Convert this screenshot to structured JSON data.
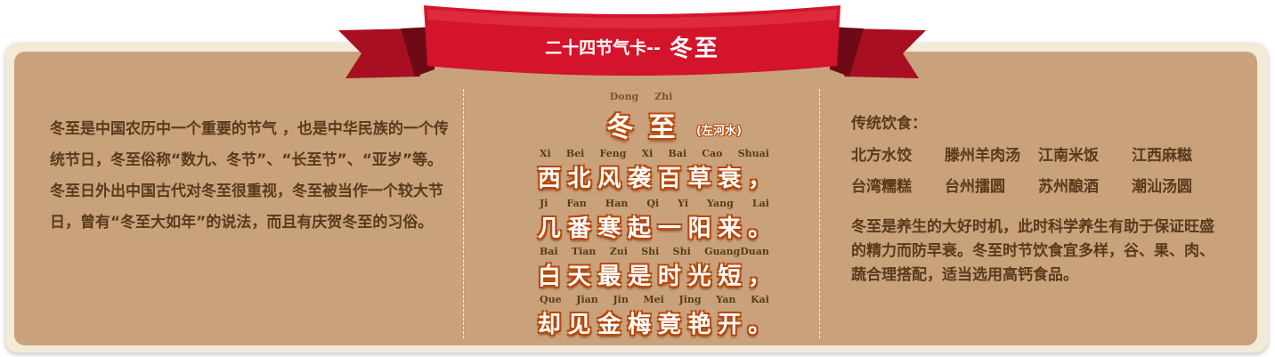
{
  "banner": {
    "prefix": "二十四节气卡--",
    "name": "冬至"
  },
  "intro": "冬至是中国农历中一个重要的节气 ，也是中华民族的一个传统节日，冬至俗称“数九、冬节”、“长至节”、“亚岁”等。冬至日外出中国古代对冬至很重视，冬至被当作一个较大节日，曾有“冬至大如年”的说法，而且有庆贺冬至的习俗。",
  "poem": {
    "title_pinyin": "Dong Zhi",
    "title_chars": [
      "冬",
      "至"
    ],
    "author": "(左河水)",
    "lines": [
      {
        "pinyin": [
          "Xi",
          "Bei",
          "Feng",
          "Xi",
          "Bai",
          "Cao",
          "Shuai"
        ],
        "chars": [
          "西",
          "北",
          "风",
          "袭",
          "百",
          "草",
          "衰",
          "，"
        ]
      },
      {
        "pinyin": [
          "Ji",
          "Fan",
          "Han",
          "Qi",
          "Yi",
          "Yang",
          "Lai"
        ],
        "chars": [
          "几",
          "番",
          "寒",
          "起",
          "一",
          "阳",
          "来",
          "。"
        ]
      },
      {
        "pinyin": [
          "Bai",
          "Tian",
          "Zui",
          "Shi",
          "Shi",
          "GuangDuan"
        ],
        "chars": [
          "白",
          "天",
          "最",
          "是",
          "时",
          "光",
          "短",
          "，"
        ]
      },
      {
        "pinyin": [
          "Que",
          "Jian",
          "Jin",
          "Mei",
          "Jing",
          "Yan",
          "Kai"
        ],
        "chars": [
          "却",
          "见",
          "金",
          "梅",
          "竟",
          "艳",
          "开",
          "。"
        ]
      }
    ]
  },
  "food": {
    "heading": "传统饮食：",
    "items": [
      "北方水饺",
      "滕州羊肉汤",
      "江南米饭",
      "江西麻糍",
      "台湾糯糕",
      "台州擂圆",
      "苏州酿酒",
      "潮汕汤圆"
    ]
  },
  "health": "冬至是养生的大好时机，此时科学养生有助于保证旺盛的精力而防早衰。冬至时节饮食宜多样，谷、果、肉、蔬合理搭配，适当选用高钙食品。",
  "colors": {
    "card_bg": "#c9a27b",
    "card_border": "#f3ead8",
    "ribbon_red": "#d3142b",
    "text_brown": "#5a3a1c",
    "outline_orange": "#b8470a"
  }
}
